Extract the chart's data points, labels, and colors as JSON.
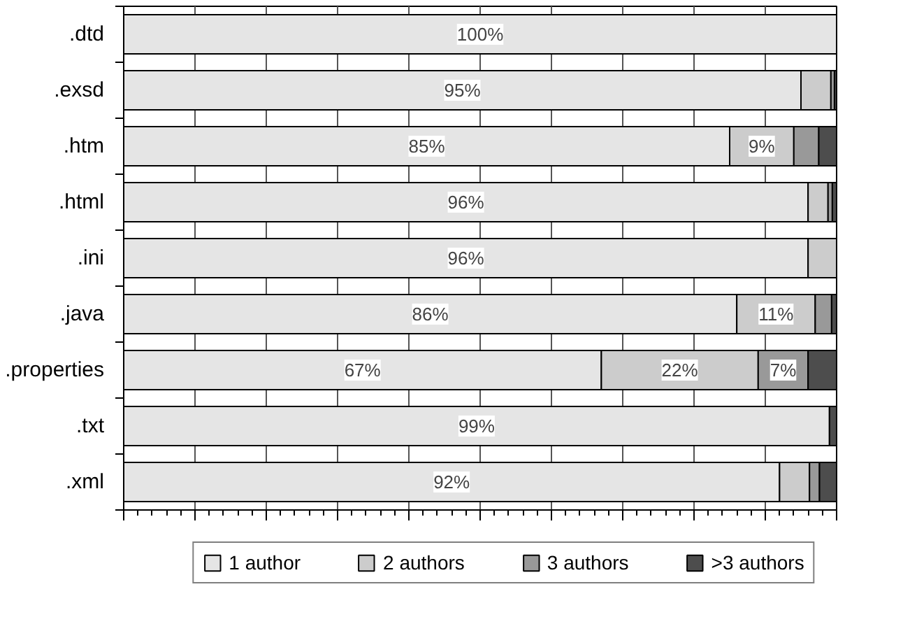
{
  "chart_data": {
    "type": "bar",
    "orientation": "horizontal",
    "stacked": true,
    "categories": [
      ".dtd",
      ".exsd",
      ".htm",
      ".html",
      ".ini",
      ".java",
      ".properties",
      ".txt",
      ".xml"
    ],
    "series": [
      {
        "name": "1 author",
        "color": "#e5e5e5",
        "values": [
          100,
          95,
          85,
          96,
          96,
          86,
          67,
          99,
          92
        ],
        "value_labels": [
          "100%",
          "95%",
          "85%",
          "96%",
          "96%",
          "86%",
          "67%",
          "99%",
          "92%"
        ]
      },
      {
        "name": "2 authors",
        "color": "#cccccc",
        "values": [
          0,
          4.2,
          9,
          2.8,
          4,
          11,
          22,
          0,
          4.2
        ],
        "value_labels": [
          null,
          null,
          "9%",
          null,
          null,
          "11%",
          "22%",
          null,
          null
        ]
      },
      {
        "name": "3 authors",
        "color": "#999999",
        "values": [
          0,
          0.5,
          3.5,
          0.6,
          0,
          2.3,
          7,
          0,
          1.4
        ],
        "value_labels": [
          null,
          null,
          null,
          null,
          null,
          null,
          "7%",
          null,
          null
        ]
      },
      {
        "name": ">3 authors",
        "color": "#4d4d4d",
        "values": [
          0,
          0.3,
          2.5,
          0.6,
          0,
          0.7,
          4,
          1,
          2.4
        ]
      }
    ],
    "xlim": [
      0,
      100
    ],
    "xticks": [
      {
        "value": 0,
        "label": null
      },
      {
        "value": 10,
        "label": null
      },
      {
        "value": 20,
        "label": null
      },
      {
        "value": 30,
        "label": null
      },
      {
        "value": 40,
        "label": null
      },
      {
        "value": 50,
        "label": null
      },
      {
        "value": 60,
        "label": null
      },
      {
        "value": 70,
        "label": null
      },
      {
        "value": 80,
        "label": null
      },
      {
        "value": 90,
        "label": null
      },
      {
        "value": 100,
        "label": null
      }
    ],
    "grid": "x",
    "legend": "bottom"
  }
}
